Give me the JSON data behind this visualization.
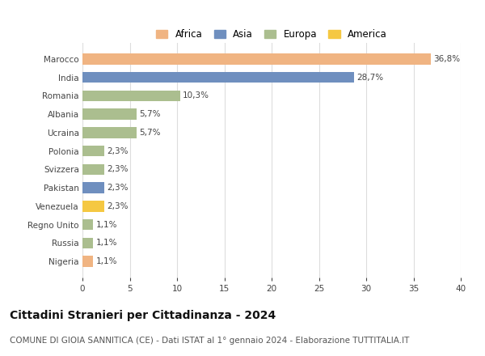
{
  "categories": [
    "Marocco",
    "India",
    "Romania",
    "Albania",
    "Ucraina",
    "Polonia",
    "Svizzera",
    "Pakistan",
    "Venezuela",
    "Regno Unito",
    "Russia",
    "Nigeria"
  ],
  "values": [
    36.8,
    28.7,
    10.3,
    5.7,
    5.7,
    2.3,
    2.3,
    2.3,
    2.3,
    1.1,
    1.1,
    1.1
  ],
  "labels": [
    "36,8%",
    "28,7%",
    "10,3%",
    "5,7%",
    "5,7%",
    "2,3%",
    "2,3%",
    "2,3%",
    "2,3%",
    "1,1%",
    "1,1%",
    "1,1%"
  ],
  "bar_colors": [
    "#f0b482",
    "#6f8fbf",
    "#abbe8f",
    "#abbe8f",
    "#abbe8f",
    "#abbe8f",
    "#abbe8f",
    "#6f8fbf",
    "#f5c842",
    "#abbe8f",
    "#abbe8f",
    "#f0b482"
  ],
  "legend_labels": [
    "Africa",
    "Asia",
    "Europa",
    "America"
  ],
  "legend_colors": [
    "#f0b482",
    "#6f8fbf",
    "#abbe8f",
    "#f5c842"
  ],
  "xlim": [
    0,
    40
  ],
  "xticks": [
    0,
    5,
    10,
    15,
    20,
    25,
    30,
    35,
    40
  ],
  "title": "Cittadini Stranieri per Cittadinanza - 2024",
  "subtitle": "COMUNE DI GIOIA SANNITICA (CE) - Dati ISTAT al 1° gennaio 2024 - Elaborazione TUTTITALIA.IT",
  "title_fontsize": 10,
  "subtitle_fontsize": 7.5,
  "label_fontsize": 7.5,
  "tick_fontsize": 7.5,
  "legend_fontsize": 8.5,
  "background_color": "#ffffff",
  "grid_color": "#dddddd"
}
